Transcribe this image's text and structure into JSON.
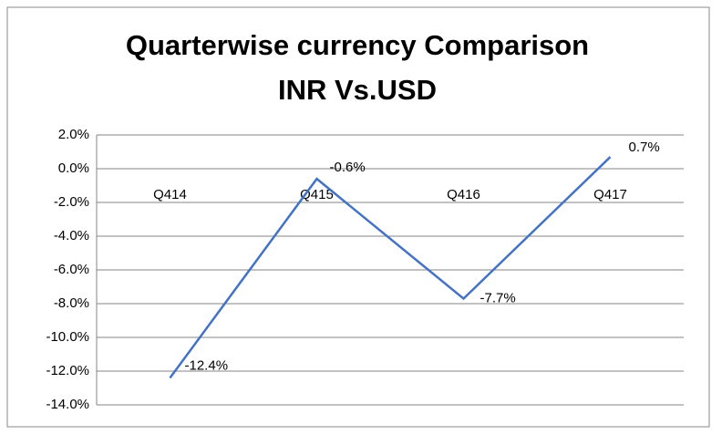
{
  "chart_data": {
    "type": "line",
    "title": [
      "Quarterwise currency Comparison",
      "INR Vs.USD"
    ],
    "categories": [
      "Q414",
      "Q415",
      "Q416",
      "Q417"
    ],
    "series": [
      {
        "name": "INR Vs.USD",
        "color": "#4472c4",
        "values": [
          -12.4,
          -0.6,
          -7.7,
          0.7
        ],
        "value_labels": [
          "-12.4%",
          "-0.6%",
          "-7.7%",
          "0.7%"
        ]
      }
    ],
    "ylim": [
      -14,
      2
    ],
    "yticks": [
      {
        "value": 2,
        "label": "2.0%"
      },
      {
        "value": 0,
        "label": "0.0%"
      },
      {
        "value": -2,
        "label": "-2.0%"
      },
      {
        "value": -4,
        "label": "-4.0%"
      },
      {
        "value": -6,
        "label": "-6.0%"
      },
      {
        "value": -8,
        "label": "-8.0%"
      },
      {
        "value": -10,
        "label": "-10.0%"
      },
      {
        "value": -12,
        "label": "-12.0%"
      },
      {
        "value": -14,
        "label": "-14.0%"
      }
    ],
    "grid": true
  }
}
